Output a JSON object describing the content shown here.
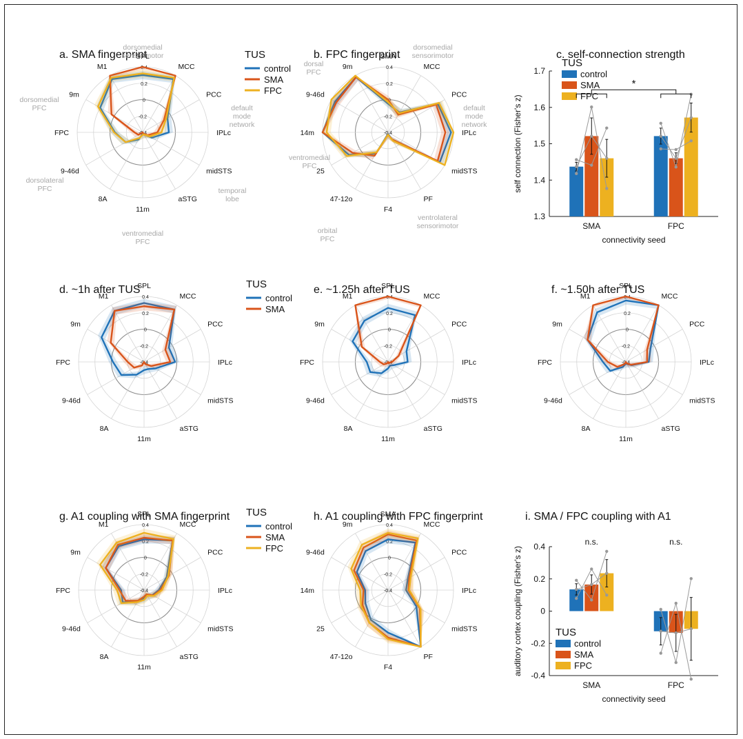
{
  "colors": {
    "control": "#1f72b8",
    "SMA": "#d9541a",
    "FPC": "#edb120",
    "grid": "#d4d4d4",
    "zero": "#8c8c8c"
  },
  "chart_data": [
    {
      "id": "a",
      "type": "radar",
      "title": "a. SMA fingerprint",
      "axes": [
        "SPL",
        "MCC",
        "PCC",
        "IPLc",
        "midSTS",
        "aSTG",
        "11m",
        "8A",
        "9-46d",
        "FPC",
        "9m",
        "M1"
      ],
      "rlim": [
        -0.4,
        0.4
      ],
      "rticks": [
        "0.4",
        "0.2",
        "0",
        "-0.2",
        "-0.4"
      ],
      "group_labels": [
        "dorsomedial sensorimotor",
        "default mode network",
        "temporal lobe",
        "ventromedial PFC",
        "dorsolateral PFC",
        "dorsomedial PFC"
      ],
      "legend": {
        "title": "TUS",
        "entries": [
          "control",
          "SMA",
          "FPC"
        ]
      },
      "series": [
        {
          "name": "control",
          "values": [
            0.3,
            0.35,
            -0.05,
            -0.08,
            -0.27,
            -0.37,
            -0.38,
            -0.3,
            -0.16,
            -0.06,
            0.2,
            0.35
          ]
        },
        {
          "name": "SMA",
          "values": [
            0.42,
            0.48,
            -0.1,
            -0.22,
            -0.33,
            -0.38,
            -0.41,
            -0.4,
            -0.34,
            -0.3,
            0.04,
            0.42
          ]
        },
        {
          "name": "FPC",
          "values": [
            0.32,
            0.37,
            -0.07,
            -0.17,
            -0.3,
            -0.37,
            -0.37,
            -0.32,
            -0.16,
            -0.05,
            0.23,
            0.37
          ]
        }
      ]
    },
    {
      "id": "b",
      "type": "radar",
      "title": "b. FPC fingerprint",
      "axes": [
        "SMA",
        "MCC",
        "PCC",
        "IPLc",
        "midSTS",
        "PF",
        "F4",
        "47-12o",
        "25",
        "14m",
        "9-46d",
        "9m"
      ],
      "rlim": [
        -0.4,
        0.4
      ],
      "rticks": [
        "0.4",
        "0.2",
        "0",
        "-0.2",
        "-0.4"
      ],
      "group_labels": [
        "dorsomedial sensorimotor",
        "default mode network",
        "ventrolateral sensorimotor",
        "orbital PFC",
        "ventromedial PFC",
        "dorsal PFC"
      ],
      "series": [
        {
          "name": "control",
          "values": [
            -0.05,
            -0.12,
            0.3,
            0.37,
            0.33,
            -0.3,
            -0.38,
            -0.1,
            0.15,
            0.43,
            0.35,
            0.38
          ]
        },
        {
          "name": "SMA",
          "values": [
            0.0,
            -0.15,
            0.28,
            0.3,
            0.3,
            -0.3,
            -0.37,
            -0.07,
            0.1,
            0.42,
            0.33,
            0.38
          ]
        },
        {
          "name": "FPC",
          "values": [
            -0.03,
            -0.13,
            0.32,
            0.42,
            0.4,
            -0.28,
            -0.37,
            -0.12,
            0.18,
            0.35,
            0.4,
            0.45
          ]
        }
      ]
    },
    {
      "id": "c",
      "type": "bar",
      "title": "c. self-connection strength",
      "categories": [
        "SMA",
        "FPC"
      ],
      "xlabel": "connectivity seed",
      "ylabel": "self connection (Fisher's z)",
      "ylim": [
        1.3,
        1.7
      ],
      "yticks": [
        "1.3",
        "1.4",
        "1.5",
        "1.6",
        "1.7"
      ],
      "legend": {
        "title": "TUS",
        "entries": [
          "control",
          "SMA",
          "FPC"
        ]
      },
      "series": [
        {
          "name": "control",
          "values": [
            1.437,
            1.521
          ],
          "err": [
            0.012,
            0.022
          ]
        },
        {
          "name": "SMA",
          "values": [
            1.521,
            1.46
          ],
          "err": [
            0.05,
            0.015
          ]
        },
        {
          "name": "FPC",
          "values": [
            1.46,
            1.572
          ],
          "err": [
            0.052,
            0.04
          ]
        }
      ],
      "subjects": [
        [
          1.405,
          1.615,
          1.578
        ],
        [
          1.465,
          1.533,
          1.393
        ],
        [
          1.575,
          1.453,
          1.508
        ]
      ],
      "annotation": "*"
    },
    {
      "id": "d",
      "type": "radar",
      "title": "d. ~1h after TUS",
      "axes": [
        "SPL",
        "MCC",
        "PCC",
        "IPLc",
        "midSTS",
        "aSTG",
        "11m",
        "8A",
        "9-46d",
        "FPC",
        "9m",
        "M1"
      ],
      "rlim": [
        -0.4,
        0.4
      ],
      "rticks": [
        "0.4",
        "0.2",
        "0",
        "-0.2",
        "-0.4"
      ],
      "legend": {
        "title": "TUS",
        "entries": [
          "control",
          "SMA"
        ]
      },
      "series": [
        {
          "name": "control",
          "values": [
            0.32,
            0.34,
            -0.05,
            -0.02,
            -0.24,
            -0.3,
            -0.3,
            -0.22,
            -0.08,
            -0.02,
            0.2,
            0.32
          ]
        },
        {
          "name": "SMA",
          "values": [
            0.28,
            0.34,
            -0.1,
            -0.08,
            -0.3,
            -0.37,
            -0.4,
            -0.35,
            -0.26,
            -0.2,
            0.07,
            0.32
          ]
        }
      ]
    },
    {
      "id": "e",
      "type": "radar",
      "title": "e. ~1.25h after TUS",
      "axes": [
        "SPL",
        "MCC",
        "PCC",
        "IPLc",
        "midSTS",
        "aSTG",
        "11m",
        "8A",
        "9-46d",
        "FPC",
        "9m",
        "M1"
      ],
      "rlim": [
        -0.4,
        0.4
      ],
      "rticks": [
        "0.4",
        "0.2",
        "0",
        "-0.2",
        "-0.4"
      ],
      "series": [
        {
          "name": "control",
          "values": [
            0.26,
            0.26,
            -0.14,
            -0.16,
            -0.32,
            -0.35,
            -0.32,
            -0.24,
            -0.15,
            -0.14,
            0.1,
            0.18
          ]
        },
        {
          "name": "SMA",
          "values": [
            0.42,
            0.42,
            -0.25,
            -0.35,
            -0.38,
            -0.38,
            -0.4,
            -0.38,
            -0.34,
            -0.3,
            -0.03,
            0.42
          ]
        }
      ]
    },
    {
      "id": "f",
      "type": "radar",
      "title": "f. ~1.50h after TUS",
      "axes": [
        "SPL",
        "MCC",
        "PCC",
        "IPLc",
        "midSTS",
        "aSTG",
        "11m",
        "8A",
        "9-46d",
        "FPC",
        "9m",
        "M1"
      ],
      "rlim": [
        -0.4,
        0.4
      ],
      "rticks": [
        "0.4",
        "0.2",
        "0",
        "-0.2",
        "-0.4"
      ],
      "series": [
        {
          "name": "control",
          "values": [
            0.35,
            0.4,
            -0.05,
            -0.12,
            -0.32,
            -0.37,
            -0.38,
            -0.33,
            -0.18,
            -0.12,
            0.14,
            0.3
          ]
        },
        {
          "name": "SMA",
          "values": [
            0.42,
            0.48,
            -0.1,
            -0.14,
            -0.33,
            -0.38,
            -0.4,
            -0.37,
            -0.28,
            -0.18,
            0.14,
            0.42
          ]
        }
      ]
    },
    {
      "id": "g",
      "type": "radar",
      "title": "g. A1 coupling with SMA fingerprint",
      "axes": [
        "SPL",
        "MCC",
        "PCC",
        "IPLc",
        "midSTS",
        "aSTG",
        "11m",
        "8A",
        "9-46d",
        "FPC",
        "9m",
        "M1"
      ],
      "rlim": [
        -0.4,
        0.4
      ],
      "rticks": [
        "0.4",
        "0.2",
        "0",
        "-0.2",
        "-0.4"
      ],
      "legend": {
        "title": "TUS",
        "entries": [
          "control",
          "SMA",
          "FPC"
        ]
      },
      "series": [
        {
          "name": "control",
          "values": [
            0.22,
            0.3,
            -0.08,
            -0.22,
            -0.28,
            -0.32,
            -0.3,
            -0.24,
            -0.1,
            -0.12,
            0.14,
            0.22
          ]
        },
        {
          "name": "SMA",
          "values": [
            0.24,
            0.3,
            -0.05,
            -0.2,
            -0.27,
            -0.34,
            -0.32,
            -0.25,
            -0.14,
            -0.1,
            0.14,
            0.24
          ]
        },
        {
          "name": "FPC",
          "values": [
            0.3,
            0.32,
            -0.06,
            -0.18,
            -0.26,
            -0.32,
            -0.28,
            -0.23,
            -0.08,
            -0.07,
            0.22,
            0.27
          ]
        }
      ]
    },
    {
      "id": "h",
      "type": "radar",
      "title": "h. A1 coupling with FPC fingerprint",
      "axes": [
        "SMA",
        "MCC",
        "PCC",
        "IPLc",
        "midSTS",
        "PF",
        "F4",
        "47-12o",
        "25",
        "14m",
        "9-46d",
        "9m"
      ],
      "rlim": [
        -0.4,
        0.4
      ],
      "rticks": [
        "0.4",
        "0.2",
        "0",
        "-0.2",
        "-0.4"
      ],
      "series": [
        {
          "name": "control",
          "values": [
            0.22,
            0.27,
            -0.12,
            -0.18,
            0.0,
            0.48,
            0.12,
            0.02,
            -0.08,
            -0.12,
            0.04,
            0.15
          ]
        },
        {
          "name": "SMA",
          "values": [
            0.28,
            0.3,
            -0.1,
            -0.15,
            0.05,
            0.52,
            0.18,
            0.06,
            -0.04,
            -0.1,
            0.08,
            0.2
          ]
        },
        {
          "name": "FPC",
          "values": [
            0.3,
            0.33,
            -0.08,
            -0.14,
            0.06,
            0.48,
            0.2,
            0.06,
            -0.02,
            -0.06,
            0.12,
            0.24
          ]
        }
      ]
    },
    {
      "id": "i",
      "type": "bar",
      "title": "i. SMA / FPC coupling with A1",
      "categories": [
        "SMA",
        "FPC"
      ],
      "xlabel": "connectivity seed",
      "ylabel": "auditory cortex coupling (Fisher's z)",
      "ylim": [
        -0.4,
        0.4
      ],
      "yticks": [
        "-0.4",
        "-0.2",
        "0",
        "0.2",
        "0.4"
      ],
      "legend": {
        "title": "TUS",
        "entries": [
          "control",
          "SMA",
          "FPC"
        ]
      },
      "series": [
        {
          "name": "control",
          "values": [
            0.135,
            -0.125
          ],
          "err": [
            0.035,
            0.085
          ]
        },
        {
          "name": "SMA",
          "values": [
            0.165,
            -0.135
          ],
          "err": [
            0.06,
            0.115
          ]
        },
        {
          "name": "FPC",
          "values": [
            0.235,
            -0.11
          ],
          "err": [
            0.085,
            0.195
          ]
        }
      ],
      "subjects": [
        [
          0.16,
          0.105,
          0.03
        ],
        [
          0.065,
          0.27,
          -0.23
        ],
        [
          0.39,
          0.12,
          -0.44
        ]
      ],
      "annotations": [
        "n.s.",
        "n.s."
      ]
    }
  ]
}
